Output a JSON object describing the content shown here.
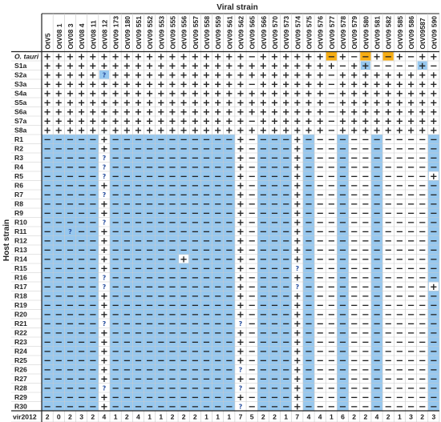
{
  "title": "Viral strain",
  "host_axis_label": "Host strain",
  "colors": {
    "blue": "#97c8ef",
    "orange": "#f7ae15",
    "grid": "#c9c9c9",
    "ink": "#222222",
    "question": "#2a4f9e"
  },
  "columns": [
    "OtV5",
    "OtV08 1",
    "OtV08 3",
    "OtV08 4",
    "OtV08 11",
    "OtV08 12",
    "OtV09 173",
    "OtV09 180",
    "OtV09 551",
    "OtV09 552",
    "OtV09 553",
    "OtV09 555",
    "OtV09 556",
    "OtV09 557",
    "OtV09 558",
    "OtV09 559",
    "OtV09 561",
    "OtV09 562",
    "OtV09 565",
    "OtV09 566",
    "OtV09 570",
    "OtV09 573",
    "OtV09 574",
    "OtV09 575",
    "OtV09 576",
    "OtV09 577",
    "OtV09 578",
    "OtV09 579",
    "OtV09 580",
    "OtV09 581",
    "OtV09 582",
    "OtV09 585",
    "OtV09 586",
    "OtV09587",
    "OtV09 590"
  ],
  "rows": [
    "O. tauri",
    "S1a",
    "S2a",
    "S3a",
    "S4a",
    "S5a",
    "S6a",
    "S7a",
    "S8a",
    "R1",
    "R2",
    "R3",
    "R4",
    "R5",
    "R6",
    "R7",
    "R8",
    "R9",
    "R10",
    "R11",
    "R12",
    "R13",
    "R14",
    "R15",
    "R16",
    "R17",
    "R18",
    "R19",
    "R20",
    "R21",
    "R22",
    "R23",
    "R24",
    "R25",
    "R26",
    "R27",
    "R28",
    "R29",
    "R30"
  ],
  "symbols": {
    "+": "+",
    "-": "−",
    "?": "?"
  },
  "matrix": [
    [
      "+",
      "+",
      "+",
      "+",
      "+",
      "+",
      "+",
      "+",
      "+",
      "+",
      "+",
      "+",
      "+",
      "+",
      "+",
      "+",
      "+",
      "+",
      "-",
      "+",
      "+",
      "+",
      "+",
      "+",
      "+",
      "-",
      "+",
      "-",
      "-",
      "+",
      "-",
      "+",
      "-",
      "+",
      "+"
    ],
    [
      "+",
      "+",
      "+",
      "+",
      "+",
      "+",
      "+",
      "+",
      "+",
      "+",
      "+",
      "+",
      "+",
      "+",
      "+",
      "+",
      "+",
      "+",
      "+",
      "+",
      "+",
      "+",
      "+",
      "+",
      "+",
      "+",
      "-",
      "+",
      "+",
      "-",
      "-",
      "-",
      "-",
      "+",
      "-"
    ],
    [
      "+",
      "+",
      "+",
      "+",
      "+",
      "?",
      "+",
      "+",
      "+",
      "+",
      "+",
      "+",
      "+",
      "+",
      "+",
      "+",
      "+",
      "+",
      "+",
      "+",
      "+",
      "+",
      "+",
      "+",
      "+",
      "-",
      "+",
      "+",
      "+",
      "+",
      "+",
      "+",
      "+",
      "+",
      "+"
    ],
    [
      "+",
      "+",
      "+",
      "+",
      "+",
      "+",
      "+",
      "+",
      "+",
      "+",
      "+",
      "+",
      "+",
      "+",
      "+",
      "+",
      "+",
      "+",
      "-",
      "+",
      "+",
      "+",
      "+",
      "+",
      "+",
      "-",
      "+",
      "+",
      "+",
      "+",
      "+",
      "+",
      "+",
      "+",
      "+"
    ],
    [
      "+",
      "+",
      "+",
      "+",
      "+",
      "+",
      "+",
      "+",
      "+",
      "+",
      "+",
      "+",
      "+",
      "+",
      "+",
      "+",
      "+",
      "+",
      "+",
      "+",
      "+",
      "+",
      "+",
      "+",
      "+",
      "-",
      "+",
      "+",
      "+",
      "+",
      "+",
      "+",
      "+",
      "+",
      "+"
    ],
    [
      "+",
      "+",
      "+",
      "+",
      "+",
      "+",
      "+",
      "+",
      "+",
      "+",
      "+",
      "+",
      "+",
      "+",
      "+",
      "+",
      "+",
      "+",
      "+",
      "+",
      "+",
      "+",
      "+",
      "+",
      "+",
      "-",
      "+",
      "+",
      "+",
      "+",
      "+",
      "+",
      "+",
      "+",
      "+"
    ],
    [
      "+",
      "+",
      "+",
      "+",
      "+",
      "+",
      "+",
      "+",
      "+",
      "+",
      "+",
      "+",
      "+",
      "+",
      "+",
      "+",
      "+",
      "+",
      "+",
      "+",
      "+",
      "+",
      "+",
      "+",
      "+",
      "-",
      "+",
      "+",
      "+",
      "+",
      "+",
      "+",
      "+",
      "+",
      "+"
    ],
    [
      "+",
      "+",
      "+",
      "+",
      "+",
      "+",
      "+",
      "+",
      "+",
      "+",
      "+",
      "+",
      "+",
      "+",
      "+",
      "+",
      "+",
      "+",
      "-",
      "+",
      "+",
      "+",
      "+",
      "+",
      "+",
      "-",
      "+",
      "+",
      "+",
      "+",
      "+",
      "+",
      "+",
      "+",
      "+"
    ],
    [
      "+",
      "+",
      "+",
      "+",
      "+",
      "+",
      "+",
      "+",
      "+",
      "+",
      "+",
      "+",
      "+",
      "+",
      "+",
      "+",
      "+",
      "+",
      "+",
      "+",
      "+",
      "+",
      "+",
      "+",
      "+",
      "-",
      "+",
      "+",
      "+",
      "+",
      "+",
      "+",
      "+",
      "+",
      "+"
    ],
    [
      "-",
      "-",
      "-",
      "-",
      "-",
      "+",
      "-",
      "-",
      "-",
      "-",
      "-",
      "-",
      "-",
      "-",
      "-",
      "-",
      "-",
      "+",
      "-",
      "-",
      "-",
      "-",
      "+",
      "-",
      "-",
      "-",
      "-",
      "-",
      "-",
      "-",
      "-",
      "-",
      "-",
      "-",
      "-"
    ],
    [
      "-",
      "-",
      "-",
      "-",
      "-",
      "+",
      "-",
      "-",
      "-",
      "-",
      "-",
      "-",
      "-",
      "-",
      "-",
      "-",
      "-",
      "+",
      "-",
      "-",
      "-",
      "-",
      "+",
      "-",
      "-",
      "-",
      "-",
      "-",
      "-",
      "-",
      "-",
      "-",
      "-",
      "-",
      "-"
    ],
    [
      "-",
      "-",
      "-",
      "-",
      "-",
      "?",
      "-",
      "-",
      "-",
      "-",
      "-",
      "-",
      "-",
      "-",
      "-",
      "-",
      "-",
      "+",
      "-",
      "-",
      "-",
      "-",
      "+",
      "-",
      "-",
      "-",
      "-",
      "-",
      "-",
      "-",
      "-",
      "-",
      "-",
      "-",
      "-"
    ],
    [
      "-",
      "-",
      "-",
      "-",
      "-",
      "?",
      "-",
      "-",
      "-",
      "-",
      "-",
      "-",
      "-",
      "-",
      "-",
      "-",
      "-",
      "+",
      "-",
      "-",
      "-",
      "-",
      "+",
      "-",
      "-",
      "-",
      "-",
      "-",
      "-",
      "-",
      "-",
      "-",
      "-",
      "-",
      "-"
    ],
    [
      "-",
      "-",
      "-",
      "-",
      "-",
      "?",
      "-",
      "-",
      "-",
      "-",
      "-",
      "-",
      "-",
      "-",
      "-",
      "-",
      "-",
      "+",
      "-",
      "-",
      "-",
      "-",
      "+",
      "-",
      "-",
      "-",
      "-",
      "-",
      "-",
      "-",
      "-",
      "-",
      "-",
      "-",
      "+"
    ],
    [
      "-",
      "-",
      "-",
      "-",
      "-",
      "+",
      "-",
      "-",
      "-",
      "-",
      "-",
      "-",
      "-",
      "-",
      "-",
      "-",
      "-",
      "+",
      "-",
      "-",
      "-",
      "-",
      "+",
      "-",
      "-",
      "-",
      "-",
      "-",
      "-",
      "-",
      "-",
      "-",
      "-",
      "-",
      "-"
    ],
    [
      "-",
      "-",
      "-",
      "-",
      "-",
      "?",
      "-",
      "-",
      "-",
      "-",
      "-",
      "-",
      "-",
      "-",
      "-",
      "-",
      "-",
      "+",
      "-",
      "-",
      "-",
      "-",
      "+",
      "-",
      "-",
      "-",
      "-",
      "-",
      "-",
      "-",
      "-",
      "-",
      "-",
      "-",
      "-"
    ],
    [
      "-",
      "-",
      "-",
      "-",
      "-",
      "+",
      "-",
      "-",
      "-",
      "-",
      "-",
      "-",
      "-",
      "-",
      "-",
      "-",
      "-",
      "+",
      "-",
      "-",
      "-",
      "-",
      "+",
      "-",
      "-",
      "-",
      "-",
      "-",
      "-",
      "-",
      "-",
      "-",
      "-",
      "-",
      "-"
    ],
    [
      "-",
      "-",
      "-",
      "-",
      "-",
      "+",
      "-",
      "-",
      "-",
      "-",
      "-",
      "-",
      "-",
      "-",
      "-",
      "-",
      "-",
      "+",
      "-",
      "-",
      "-",
      "-",
      "+",
      "-",
      "-",
      "-",
      "-",
      "-",
      "-",
      "-",
      "-",
      "-",
      "-",
      "-",
      "-"
    ],
    [
      "-",
      "-",
      "-",
      "-",
      "-",
      "?",
      "-",
      "-",
      "-",
      "-",
      "-",
      "-",
      "-",
      "-",
      "-",
      "-",
      "-",
      "+",
      "-",
      "-",
      "-",
      "-",
      "+",
      "-",
      "-",
      "-",
      "-",
      "-",
      "-",
      "-",
      "-",
      "-",
      "-",
      "-",
      "-"
    ],
    [
      "-",
      "-",
      "?",
      "-",
      "-",
      "+",
      "-",
      "-",
      "-",
      "-",
      "-",
      "-",
      "-",
      "-",
      "-",
      "-",
      "-",
      "+",
      "-",
      "-",
      "-",
      "-",
      "+",
      "-",
      "-",
      "-",
      "-",
      "-",
      "-",
      "-",
      "-",
      "-",
      "-",
      "-",
      "-"
    ],
    [
      "-",
      "-",
      "-",
      "-",
      "-",
      "+",
      "-",
      "-",
      "-",
      "-",
      "-",
      "-",
      "-",
      "-",
      "-",
      "-",
      "-",
      "+",
      "-",
      "-",
      "-",
      "-",
      "+",
      "-",
      "-",
      "-",
      "-",
      "-",
      "-",
      "-",
      "-",
      "-",
      "-",
      "-",
      "-"
    ],
    [
      "-",
      "-",
      "-",
      "-",
      "-",
      "+",
      "-",
      "-",
      "-",
      "-",
      "-",
      "-",
      "-",
      "-",
      "-",
      "-",
      "-",
      "+",
      "-",
      "-",
      "-",
      "-",
      "+",
      "-",
      "-",
      "-",
      "-",
      "-",
      "-",
      "-",
      "-",
      "-",
      "-",
      "-",
      "-"
    ],
    [
      "-",
      "-",
      "-",
      "-",
      "-",
      "+",
      "-",
      "-",
      "-",
      "-",
      "-",
      "-",
      "+",
      "-",
      "-",
      "-",
      "-",
      "+",
      "-",
      "-",
      "-",
      "-",
      "+",
      "-",
      "-",
      "-",
      "-",
      "-",
      "-",
      "-",
      "-",
      "-",
      "-",
      "-",
      "-"
    ],
    [
      "-",
      "-",
      "-",
      "-",
      "-",
      "+",
      "-",
      "-",
      "-",
      "-",
      "-",
      "-",
      "-",
      "-",
      "-",
      "-",
      "-",
      "+",
      "-",
      "-",
      "-",
      "-",
      "?",
      "-",
      "-",
      "-",
      "-",
      "-",
      "-",
      "-",
      "-",
      "-",
      "-",
      "-",
      "-"
    ],
    [
      "-",
      "-",
      "-",
      "-",
      "-",
      "?",
      "-",
      "-",
      "-",
      "-",
      "-",
      "-",
      "-",
      "-",
      "-",
      "-",
      "-",
      "+",
      "-",
      "-",
      "-",
      "-",
      "+",
      "-",
      "-",
      "-",
      "-",
      "-",
      "-",
      "-",
      "-",
      "-",
      "-",
      "-",
      "-"
    ],
    [
      "-",
      "-",
      "-",
      "-",
      "-",
      "?",
      "-",
      "-",
      "-",
      "-",
      "-",
      "-",
      "-",
      "-",
      "-",
      "-",
      "-",
      "+",
      "-",
      "-",
      "-",
      "-",
      "?",
      "-",
      "-",
      "-",
      "-",
      "-",
      "-",
      "-",
      "-",
      "-",
      "-",
      "-",
      "+"
    ],
    [
      "-",
      "-",
      "-",
      "-",
      "-",
      "+",
      "-",
      "-",
      "-",
      "-",
      "-",
      "-",
      "-",
      "-",
      "-",
      "-",
      "-",
      "+",
      "-",
      "-",
      "-",
      "-",
      "+",
      "-",
      "-",
      "-",
      "-",
      "-",
      "-",
      "-",
      "-",
      "-",
      "-",
      "-",
      "-"
    ],
    [
      "-",
      "-",
      "-",
      "-",
      "-",
      "+",
      "-",
      "-",
      "-",
      "-",
      "-",
      "-",
      "-",
      "-",
      "-",
      "-",
      "-",
      "+",
      "-",
      "-",
      "-",
      "-",
      "+",
      "-",
      "-",
      "-",
      "-",
      "-",
      "-",
      "-",
      "-",
      "-",
      "-",
      "-",
      "-"
    ],
    [
      "-",
      "-",
      "-",
      "-",
      "-",
      "+",
      "-",
      "-",
      "-",
      "-",
      "-",
      "-",
      "-",
      "-",
      "-",
      "-",
      "-",
      "+",
      "-",
      "-",
      "-",
      "-",
      "+",
      "-",
      "-",
      "-",
      "-",
      "-",
      "-",
      "-",
      "-",
      "-",
      "-",
      "-",
      "-"
    ],
    [
      "-",
      "-",
      "-",
      "-",
      "-",
      "?",
      "-",
      "-",
      "-",
      "-",
      "-",
      "-",
      "-",
      "-",
      "-",
      "-",
      "-",
      "?",
      "-",
      "-",
      "-",
      "-",
      "+",
      "-",
      "-",
      "-",
      "-",
      "-",
      "-",
      "-",
      "-",
      "-",
      "-",
      "-",
      "-"
    ],
    [
      "-",
      "-",
      "-",
      "-",
      "-",
      "+",
      "-",
      "-",
      "-",
      "-",
      "-",
      "-",
      "-",
      "-",
      "-",
      "-",
      "-",
      "+",
      "-",
      "-",
      "-",
      "-",
      "+",
      "-",
      "-",
      "-",
      "-",
      "-",
      "-",
      "-",
      "-",
      "-",
      "-",
      "-",
      "-"
    ],
    [
      "-",
      "-",
      "-",
      "-",
      "-",
      "+",
      "-",
      "-",
      "-",
      "-",
      "-",
      "-",
      "-",
      "-",
      "-",
      "-",
      "-",
      "+",
      "-",
      "-",
      "-",
      "-",
      "+",
      "-",
      "-",
      "-",
      "-",
      "-",
      "-",
      "-",
      "-",
      "-",
      "-",
      "-",
      "-"
    ],
    [
      "-",
      "-",
      "-",
      "-",
      "-",
      "+",
      "-",
      "-",
      "-",
      "-",
      "-",
      "-",
      "-",
      "-",
      "-",
      "-",
      "-",
      "+",
      "-",
      "-",
      "-",
      "-",
      "+",
      "-",
      "-",
      "-",
      "-",
      "-",
      "-",
      "-",
      "-",
      "-",
      "-",
      "-",
      "-"
    ],
    [
      "-",
      "-",
      "-",
      "-",
      "-",
      "+",
      "-",
      "-",
      "-",
      "-",
      "-",
      "-",
      "-",
      "-",
      "-",
      "-",
      "-",
      "+",
      "-",
      "-",
      "-",
      "-",
      "+",
      "-",
      "-",
      "-",
      "-",
      "-",
      "-",
      "-",
      "-",
      "-",
      "-",
      "-",
      "-"
    ],
    [
      "-",
      "-",
      "-",
      "-",
      "-",
      "+",
      "-",
      "-",
      "-",
      "-",
      "-",
      "-",
      "-",
      "-",
      "-",
      "-",
      "-",
      "?",
      "-",
      "-",
      "-",
      "-",
      "+",
      "-",
      "-",
      "-",
      "-",
      "-",
      "-",
      "-",
      "-",
      "-",
      "-",
      "-",
      "-"
    ],
    [
      "-",
      "-",
      "-",
      "-",
      "-",
      "+",
      "-",
      "-",
      "-",
      "-",
      "-",
      "-",
      "-",
      "-",
      "-",
      "-",
      "-",
      "+",
      "-",
      "-",
      "-",
      "-",
      "+",
      "-",
      "-",
      "-",
      "-",
      "-",
      "-",
      "-",
      "-",
      "-",
      "-",
      "-",
      "-"
    ],
    [
      "-",
      "-",
      "-",
      "-",
      "-",
      "?",
      "-",
      "-",
      "-",
      "-",
      "-",
      "-",
      "-",
      "-",
      "-",
      "-",
      "-",
      "?",
      "-",
      "-",
      "-",
      "-",
      "+",
      "-",
      "-",
      "-",
      "-",
      "-",
      "-",
      "-",
      "-",
      "-",
      "-",
      "-",
      "-"
    ],
    [
      "-",
      "-",
      "-",
      "-",
      "-",
      "+",
      "-",
      "-",
      "-",
      "-",
      "-",
      "-",
      "-",
      "-",
      "-",
      "-",
      "-",
      "+",
      "-",
      "-",
      "-",
      "-",
      "+",
      "-",
      "-",
      "-",
      "-",
      "-",
      "-",
      "-",
      "-",
      "-",
      "-",
      "-",
      "-"
    ],
    [
      "-",
      "-",
      "-",
      "-",
      "-",
      "+",
      "-",
      "-",
      "-",
      "-",
      "-",
      "-",
      "-",
      "-",
      "-",
      "-",
      "-",
      "?",
      "-",
      "-",
      "-",
      "-",
      "+",
      "-",
      "-",
      "-",
      "-",
      "-",
      "-",
      "-",
      "-",
      "-",
      "-",
      "-",
      "-"
    ]
  ],
  "highlights": {
    "orange": [
      [
        0,
        25
      ],
      [
        0,
        28
      ],
      [
        0,
        30
      ]
    ],
    "blue_cells": [
      [
        1,
        28
      ],
      [
        1,
        33
      ],
      [
        2,
        5
      ]
    ],
    "white_cells": [
      [
        13,
        34
      ],
      [
        22,
        12
      ],
      [
        25,
        34
      ]
    ],
    "blue_region_rows": [
      9,
      38
    ],
    "blue_region_cols": [
      0,
      1,
      2,
      3,
      4,
      6,
      7,
      8,
      9,
      10,
      11,
      12,
      13,
      14,
      15,
      16,
      19,
      20,
      21,
      23,
      26,
      29,
      34
    ]
  },
  "footer": {
    "label": "vir2012",
    "values": [
      2,
      0,
      2,
      3,
      2,
      4,
      1,
      2,
      4,
      1,
      1,
      2,
      2,
      2,
      1,
      1,
      1,
      7,
      5,
      2,
      2,
      1,
      7,
      4,
      4,
      1,
      6,
      2,
      2,
      4,
      2,
      1,
      3,
      2,
      3
    ]
  }
}
